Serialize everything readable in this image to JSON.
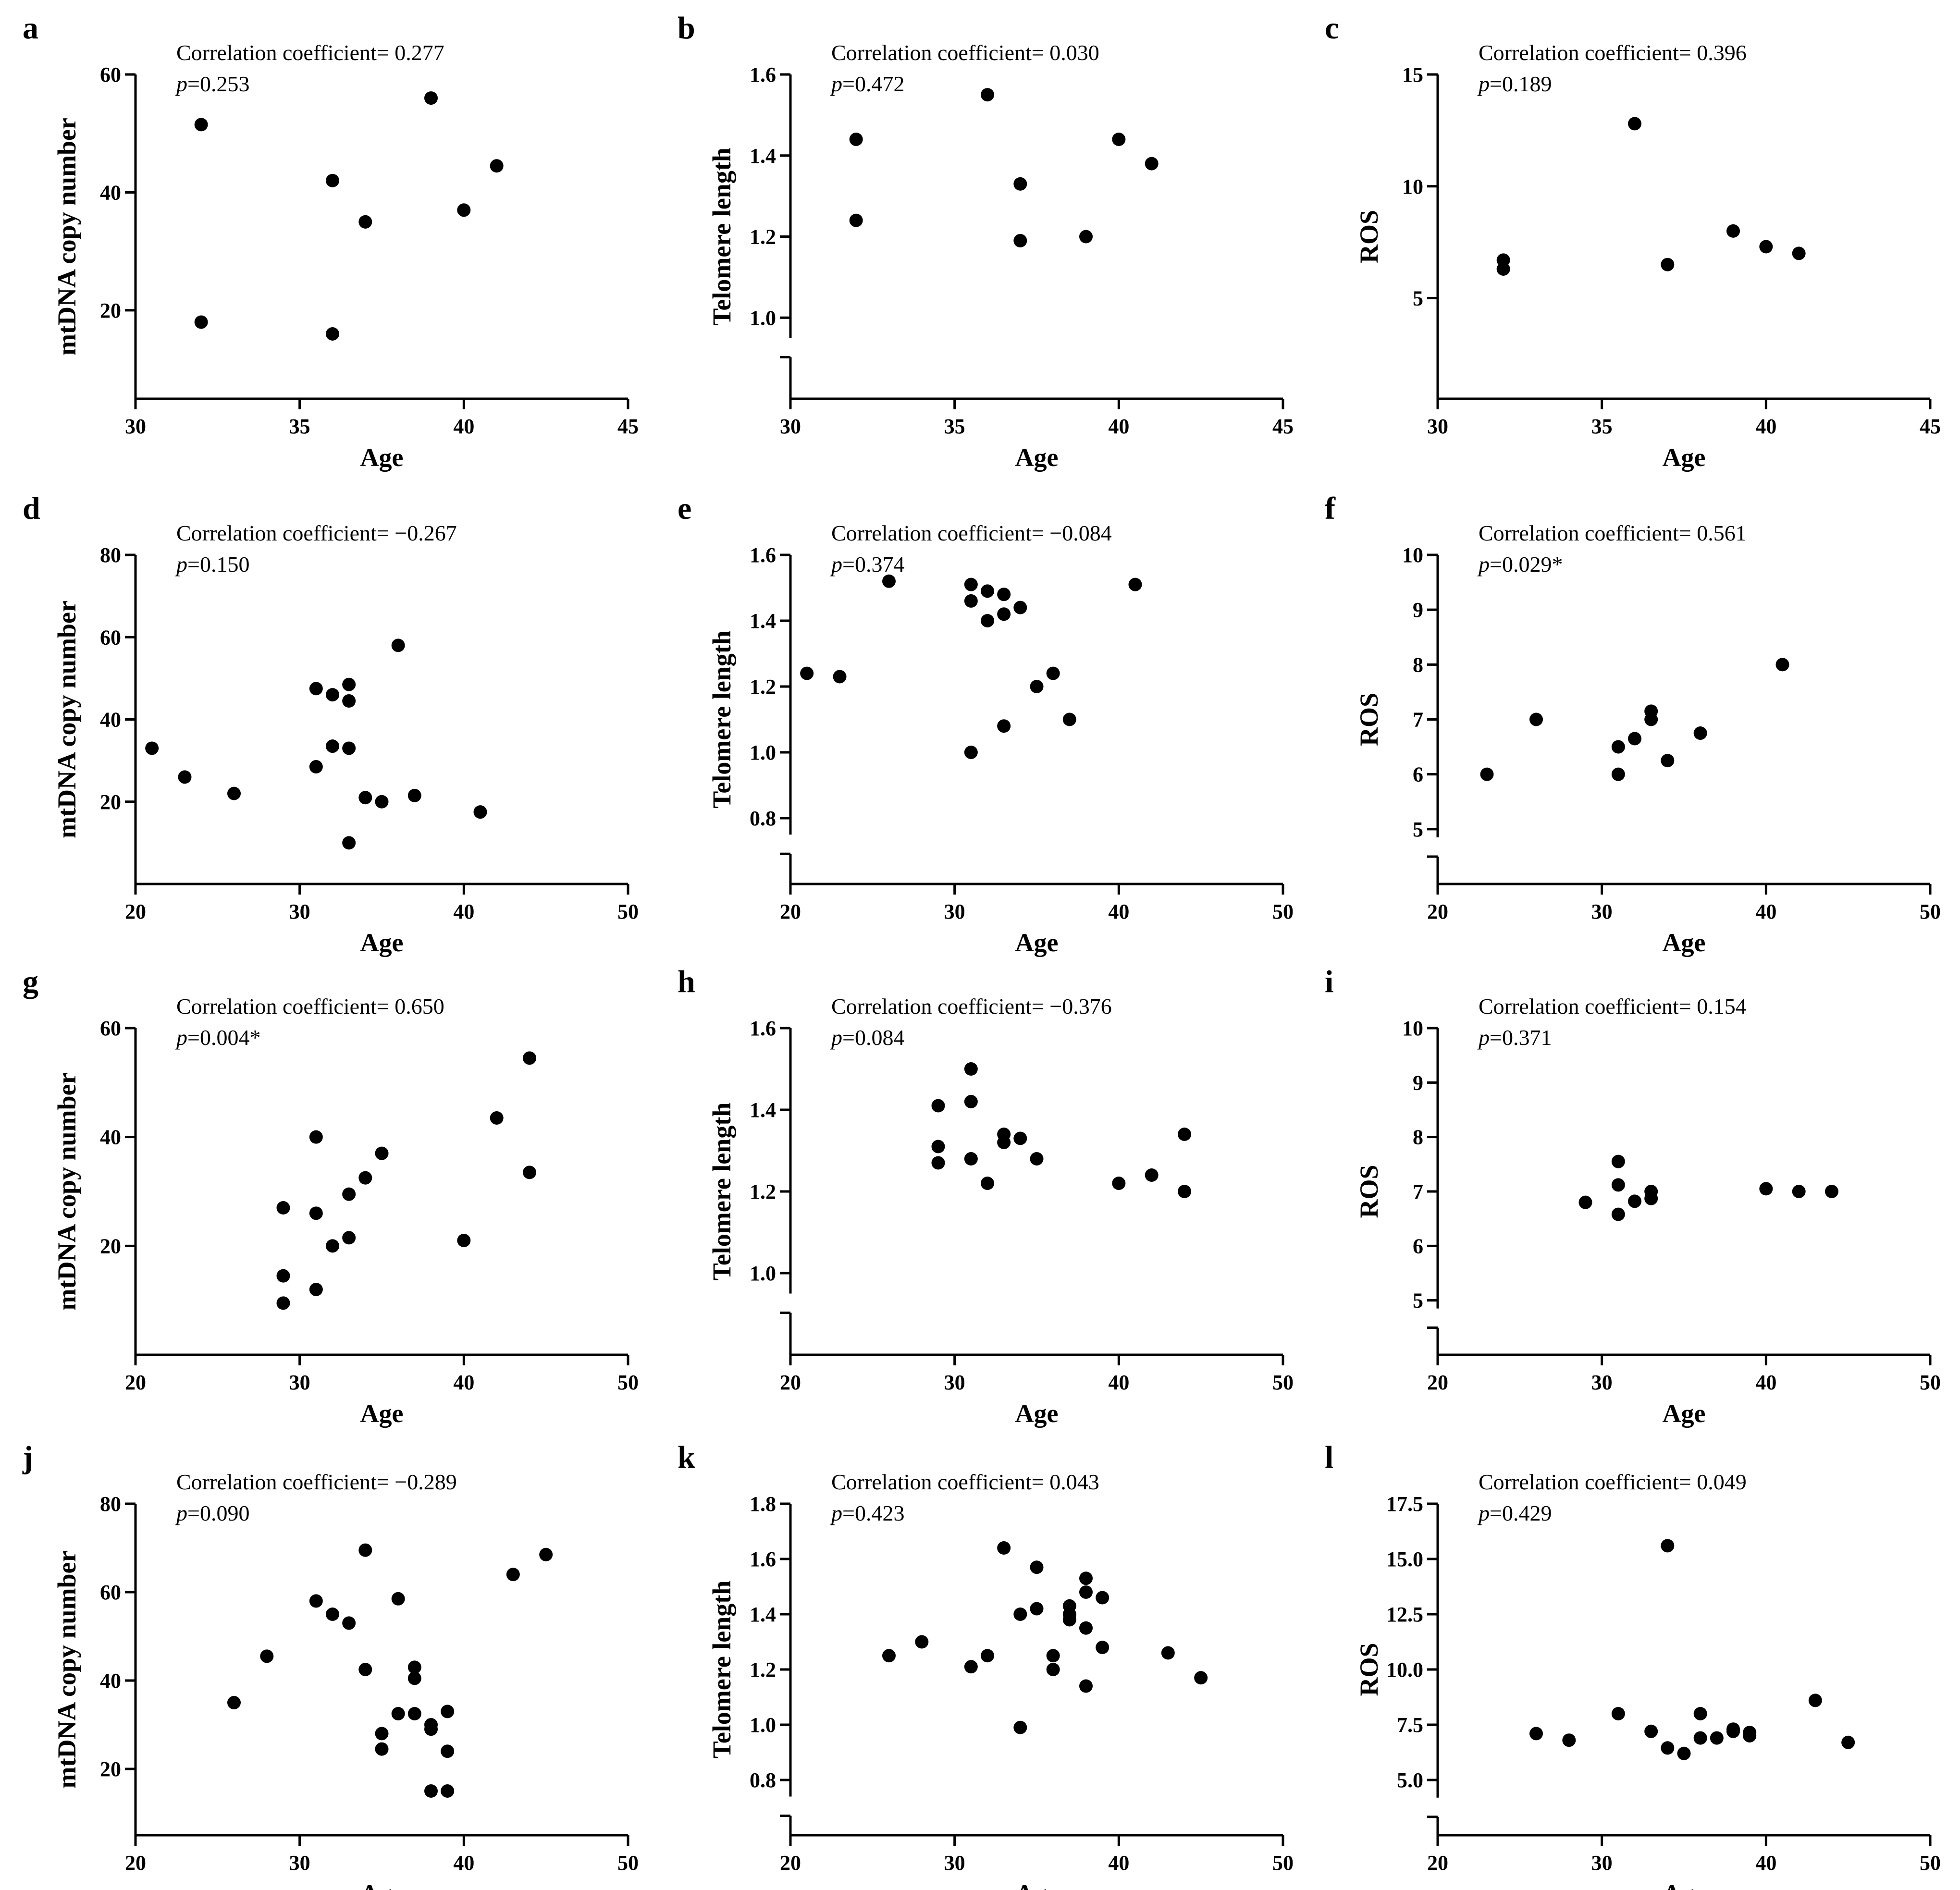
{
  "chart_data": [
    {
      "panel": "a",
      "type": "scatter",
      "xlabel": "Age",
      "ylabel": "mtDNA copy number",
      "xlim": [
        30,
        45
      ],
      "xticks": [
        30,
        35,
        40,
        45
      ],
      "ylim": [
        5,
        60
      ],
      "yticks": [
        20,
        40,
        60
      ],
      "ybreak": false,
      "annotation": {
        "line1": "Correlation coefficient= 0.277",
        "p_symbol": "p",
        "p_value": "=0.253"
      },
      "points": [
        [
          32,
          51.5
        ],
        [
          32,
          18
        ],
        [
          36,
          42
        ],
        [
          36,
          16
        ],
        [
          37,
          35
        ],
        [
          39,
          56
        ],
        [
          40,
          37
        ],
        [
          41,
          44.5
        ]
      ]
    },
    {
      "panel": "b",
      "type": "scatter",
      "xlabel": "Age",
      "ylabel": "Telomere length",
      "xlim": [
        30,
        45
      ],
      "xticks": [
        30,
        35,
        40,
        45
      ],
      "ylim": [
        0.8,
        1.6
      ],
      "yticks": [
        1.0,
        1.2,
        1.4,
        1.6
      ],
      "ybreak": true,
      "ybreak_above": 0.95,
      "annotation": {
        "line1": "Correlation coefficient= 0.030",
        "p_symbol": "p",
        "p_value": "=0.472"
      },
      "points": [
        [
          32,
          1.44
        ],
        [
          32,
          1.24
        ],
        [
          36,
          1.55
        ],
        [
          37,
          1.33
        ],
        [
          37,
          1.19
        ],
        [
          39,
          1.2
        ],
        [
          40,
          1.44
        ],
        [
          41,
          1.38
        ]
      ]
    },
    {
      "panel": "c",
      "type": "scatter",
      "xlabel": "Age",
      "ylabel": "ROS",
      "xlim": [
        30,
        45
      ],
      "xticks": [
        30,
        35,
        40,
        45
      ],
      "ylim": [
        0.5,
        15
      ],
      "yticks": [
        5,
        10,
        15
      ],
      "ybreak": false,
      "annotation": {
        "line1": "Correlation coefficient= 0.396",
        "p_symbol": "p",
        "p_value": "=0.189"
      },
      "points": [
        [
          32,
          6.7
        ],
        [
          32,
          6.3
        ],
        [
          36,
          12.8
        ],
        [
          37,
          6.5
        ],
        [
          39,
          8.0
        ],
        [
          40,
          7.3
        ],
        [
          41,
          7.0
        ]
      ]
    },
    {
      "panel": "d",
      "type": "scatter",
      "xlabel": "Age",
      "ylabel": "mtDNA copy number",
      "xlim": [
        20,
        50
      ],
      "xticks": [
        20,
        30,
        40,
        50
      ],
      "ylim": [
        0,
        80
      ],
      "yticks": [
        20,
        40,
        60,
        80
      ],
      "ybreak": false,
      "annotation": {
        "line1": "Correlation coefficient= −0.267",
        "p_symbol": "p",
        "p_value": "=0.150"
      },
      "points": [
        [
          21,
          33
        ],
        [
          23,
          26
        ],
        [
          26,
          22
        ],
        [
          31,
          47.5
        ],
        [
          31,
          28.5
        ],
        [
          32,
          46
        ],
        [
          32,
          33.5
        ],
        [
          33,
          48.5
        ],
        [
          33,
          44.5
        ],
        [
          33,
          33
        ],
        [
          33,
          10
        ],
        [
          34,
          21
        ],
        [
          35,
          20
        ],
        [
          36,
          58
        ],
        [
          37,
          21.5
        ],
        [
          41,
          17.5
        ]
      ]
    },
    {
      "panel": "e",
      "type": "scatter",
      "xlabel": "Age",
      "ylabel": "Telomere length",
      "xlim": [
        20,
        50
      ],
      "xticks": [
        20,
        30,
        40,
        50
      ],
      "ylim": [
        0.6,
        1.6
      ],
      "yticks": [
        0.8,
        1.0,
        1.2,
        1.4,
        1.6
      ],
      "ybreak": true,
      "ybreak_above": 0.75,
      "annotation": {
        "line1": "Correlation coefficient= −0.084",
        "p_symbol": "p",
        "p_value": "=0.374"
      },
      "points": [
        [
          21,
          1.24
        ],
        [
          23,
          1.23
        ],
        [
          26,
          1.52
        ],
        [
          31,
          1.51
        ],
        [
          31,
          1.46
        ],
        [
          31,
          1.0
        ],
        [
          32,
          1.49
        ],
        [
          32,
          1.4
        ],
        [
          33,
          1.48
        ],
        [
          33,
          1.42
        ],
        [
          33,
          1.08
        ],
        [
          34,
          1.44
        ],
        [
          35,
          1.2
        ],
        [
          36,
          1.24
        ],
        [
          37,
          1.1
        ],
        [
          41,
          1.51
        ]
      ]
    },
    {
      "panel": "f",
      "type": "scatter",
      "xlabel": "Age",
      "ylabel": "ROS",
      "xlim": [
        20,
        50
      ],
      "xticks": [
        20,
        30,
        40,
        50
      ],
      "ylim": [
        4,
        10
      ],
      "yticks": [
        5,
        6,
        7,
        8,
        9,
        10
      ],
      "ybreak": true,
      "ybreak_above": 4.85,
      "annotation": {
        "line1": "Correlation coefficient= 0.561",
        "p_symbol": "p",
        "p_value": "=0.029*"
      },
      "points": [
        [
          23,
          6.0
        ],
        [
          26,
          7.0
        ],
        [
          31,
          6.5
        ],
        [
          31,
          6.0
        ],
        [
          32,
          6.65
        ],
        [
          33,
          7.15
        ],
        [
          33,
          7.0
        ],
        [
          34,
          6.25
        ],
        [
          36,
          6.75
        ],
        [
          41,
          8.0
        ]
      ]
    },
    {
      "panel": "g",
      "type": "scatter",
      "xlabel": "Age",
      "ylabel": "mtDNA copy number",
      "xlim": [
        20,
        50
      ],
      "xticks": [
        20,
        30,
        40,
        50
      ],
      "ylim": [
        0,
        60
      ],
      "yticks": [
        20,
        40,
        60
      ],
      "ybreak": false,
      "annotation": {
        "line1": "Correlation coefficient= 0.650",
        "p_symbol": "p",
        "p_value": "=0.004*"
      },
      "points": [
        [
          29,
          27
        ],
        [
          29,
          14.5
        ],
        [
          29,
          9.5
        ],
        [
          31,
          40
        ],
        [
          31,
          26
        ],
        [
          31,
          12
        ],
        [
          32,
          20
        ],
        [
          33,
          29.5
        ],
        [
          33,
          21.5
        ],
        [
          34,
          32.5
        ],
        [
          35,
          37
        ],
        [
          40,
          21
        ],
        [
          42,
          43.5
        ],
        [
          44,
          54.5
        ],
        [
          44,
          33.5
        ]
      ]
    },
    {
      "panel": "h",
      "type": "scatter",
      "xlabel": "Age",
      "ylabel": "Telomere length",
      "xlim": [
        20,
        50
      ],
      "xticks": [
        20,
        30,
        40,
        50
      ],
      "ylim": [
        0.8,
        1.6
      ],
      "yticks": [
        1.0,
        1.2,
        1.4,
        1.6
      ],
      "ybreak": true,
      "ybreak_above": 0.95,
      "annotation": {
        "line1": "Correlation coefficient= −0.376",
        "p_symbol": "p",
        "p_value": "=0.084"
      },
      "points": [
        [
          29,
          1.41
        ],
        [
          29,
          1.31
        ],
        [
          29,
          1.27
        ],
        [
          31,
          1.5
        ],
        [
          31,
          1.42
        ],
        [
          31,
          1.28
        ],
        [
          32,
          1.22
        ],
        [
          33,
          1.34
        ],
        [
          33,
          1.32
        ],
        [
          34,
          1.33
        ],
        [
          35,
          1.28
        ],
        [
          40,
          1.22
        ],
        [
          42,
          1.24
        ],
        [
          44,
          1.34
        ],
        [
          44,
          1.2
        ]
      ]
    },
    {
      "panel": "i",
      "type": "scatter",
      "xlabel": "Age",
      "ylabel": "ROS",
      "xlim": [
        20,
        50
      ],
      "xticks": [
        20,
        30,
        40,
        50
      ],
      "ylim": [
        4,
        10
      ],
      "yticks": [
        5,
        6,
        7,
        8,
        9,
        10
      ],
      "ybreak": true,
      "ybreak_above": 4.85,
      "annotation": {
        "line1": "Correlation coefficient= 0.154",
        "p_symbol": "p",
        "p_value": "=0.371"
      },
      "points": [
        [
          29,
          6.8
        ],
        [
          31,
          7.55
        ],
        [
          31,
          7.12
        ],
        [
          31,
          6.58
        ],
        [
          32,
          6.82
        ],
        [
          33,
          7.0
        ],
        [
          33,
          6.87
        ],
        [
          40,
          7.05
        ],
        [
          42,
          7.0
        ],
        [
          44,
          7.0
        ]
      ]
    },
    {
      "panel": "j",
      "type": "scatter",
      "xlabel": "Age",
      "ylabel": "mtDNA copy number",
      "xlim": [
        20,
        50
      ],
      "xticks": [
        20,
        30,
        40,
        50
      ],
      "ylim": [
        5,
        80
      ],
      "yticks": [
        20,
        40,
        60,
        80
      ],
      "ybreak": false,
      "annotation": {
        "line1": "Correlation coefficient= −0.289",
        "p_symbol": "p",
        "p_value": "=0.090"
      },
      "points": [
        [
          26,
          35
        ],
        [
          28,
          45.5
        ],
        [
          31,
          58
        ],
        [
          32,
          55
        ],
        [
          33,
          53
        ],
        [
          34,
          69.5
        ],
        [
          34,
          42.5
        ],
        [
          35,
          28
        ],
        [
          35,
          24.5
        ],
        [
          36,
          58.5
        ],
        [
          36,
          32.5
        ],
        [
          37,
          43
        ],
        [
          37,
          40.5
        ],
        [
          37,
          32.5
        ],
        [
          38,
          30
        ],
        [
          38,
          29
        ],
        [
          38,
          15
        ],
        [
          39,
          33
        ],
        [
          39,
          24
        ],
        [
          39,
          15
        ],
        [
          43,
          64
        ],
        [
          45,
          68.5
        ]
      ]
    },
    {
      "panel": "k",
      "type": "scatter",
      "xlabel": "Age",
      "ylabel": "Telomere length",
      "xlim": [
        20,
        50
      ],
      "xticks": [
        20,
        30,
        40,
        50
      ],
      "ylim": [
        0.6,
        1.8
      ],
      "yticks": [
        0.8,
        1.0,
        1.2,
        1.4,
        1.6,
        1.8
      ],
      "ybreak": true,
      "ybreak_above": 0.74,
      "annotation": {
        "line1": "Correlation coefficient= 0.043",
        "p_symbol": "p",
        "p_value": "=0.423"
      },
      "points": [
        [
          26,
          1.25
        ],
        [
          28,
          1.3
        ],
        [
          31,
          1.21
        ],
        [
          32,
          1.25
        ],
        [
          33,
          1.64
        ],
        [
          34,
          1.4
        ],
        [
          34,
          0.99
        ],
        [
          35,
          1.57
        ],
        [
          35,
          1.42
        ],
        [
          36,
          1.25
        ],
        [
          36,
          1.2
        ],
        [
          37,
          1.43
        ],
        [
          37,
          1.4
        ],
        [
          37,
          1.38
        ],
        [
          38,
          1.53
        ],
        [
          38,
          1.48
        ],
        [
          38,
          1.35
        ],
        [
          38,
          1.14
        ],
        [
          39,
          1.46
        ],
        [
          39,
          1.28
        ],
        [
          43,
          1.26
        ],
        [
          45,
          1.17
        ]
      ]
    },
    {
      "panel": "l",
      "type": "scatter",
      "xlabel": "Age",
      "ylabel": "ROS",
      "xlim": [
        20,
        50
      ],
      "xticks": [
        20,
        30,
        40,
        50
      ],
      "ylim": [
        2.5,
        17.5
      ],
      "yticks": [
        5.0,
        7.5,
        10.0,
        12.5,
        15.0,
        17.5
      ],
      "ybreak": true,
      "ybreak_above": 4.2,
      "annotation": {
        "line1": "Correlation coefficient= 0.049",
        "p_symbol": "p",
        "p_value": "=0.429"
      },
      "points": [
        [
          26,
          7.1
        ],
        [
          28,
          6.8
        ],
        [
          31,
          8.0
        ],
        [
          33,
          7.2
        ],
        [
          34,
          15.6
        ],
        [
          34,
          6.45
        ],
        [
          35,
          6.2
        ],
        [
          36,
          8.0
        ],
        [
          36,
          6.9
        ],
        [
          37,
          6.9
        ],
        [
          38,
          7.3
        ],
        [
          38,
          7.2
        ],
        [
          39,
          7.15
        ],
        [
          39,
          7.0
        ],
        [
          43,
          8.6
        ],
        [
          45,
          6.7
        ]
      ]
    }
  ]
}
